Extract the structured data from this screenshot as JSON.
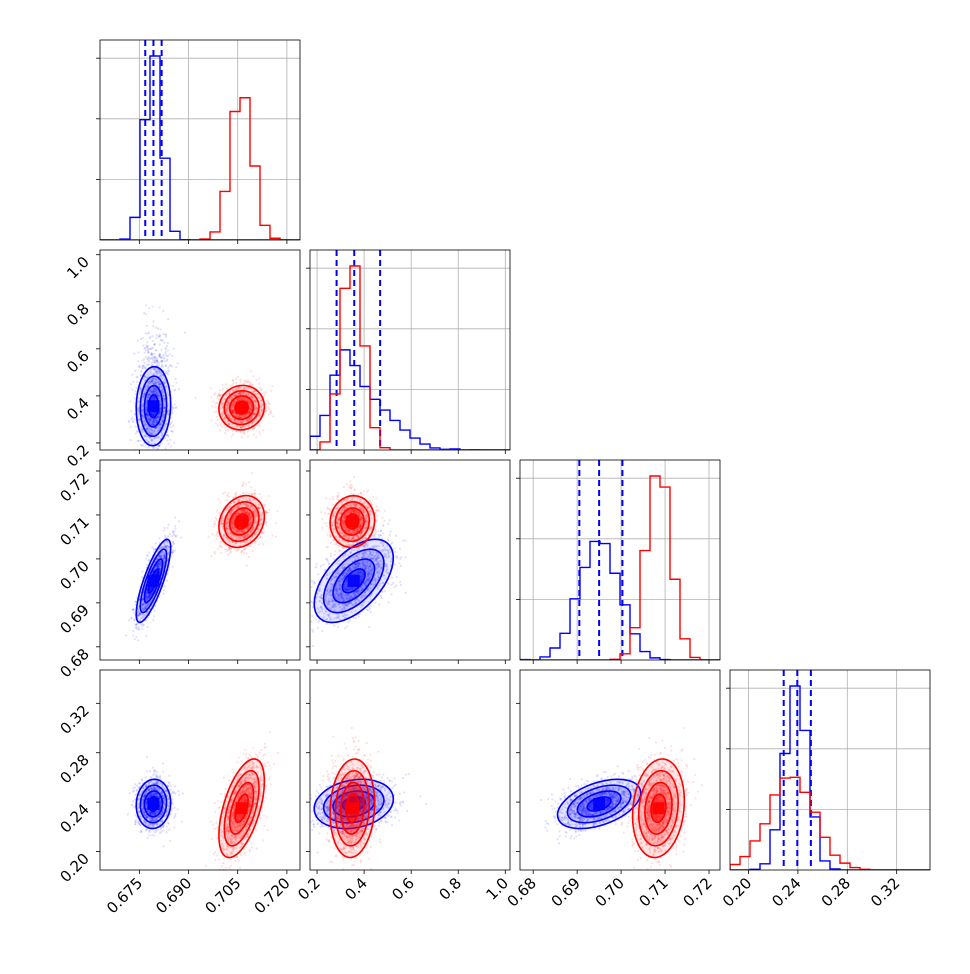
{
  "chart_data": {
    "type": "scatter",
    "title": "",
    "kind": "corner-plot",
    "grid": true,
    "colors": {
      "blue": "#0000ff",
      "red": "#ff0000",
      "axis": "#000000",
      "grid": "#b0b0b0"
    },
    "parameters": [
      {
        "range": [
          0.663,
          0.724
        ],
        "ticks": [
          0.675,
          0.69,
          0.705,
          0.72
        ],
        "tick_labels": [
          "0.675",
          "0.690",
          "0.705",
          "0.720"
        ]
      },
      {
        "range": [
          0.17,
          1.02
        ],
        "ticks": [
          0.2,
          0.4,
          0.6,
          0.8,
          1.0
        ],
        "tick_labels": [
          "0.2",
          "0.4",
          "0.6",
          "0.8",
          "1.0"
        ]
      },
      {
        "range": [
          0.677,
          0.7225
        ],
        "ticks": [
          0.68,
          0.69,
          0.7,
          0.71,
          0.72
        ],
        "tick_labels": [
          "0.68",
          "0.69",
          "0.70",
          "0.71",
          "0.72"
        ]
      },
      {
        "range": [
          0.185,
          0.347
        ],
        "ticks": [
          0.2,
          0.24,
          0.28,
          0.32
        ],
        "tick_labels": [
          "0.20",
          "0.24",
          "0.28",
          "0.32"
        ]
      }
    ],
    "series": [
      {
        "color": "blue",
        "mean": [
          0.6793,
          0.356,
          0.695,
          0.2385
        ],
        "sigma": [
          0.0025,
          0.08,
          0.0045,
          0.0095
        ],
        "correlation": {
          "0-2": 0.8,
          "1-2": 0.55,
          "1-3": 0.2,
          "2-3": 0.45,
          "0-1": 0.05,
          "0-3": 0.05
        },
        "quantiles": [
          [
            0.6768,
            0.6793,
            0.6818
          ],
          [
            0.283,
            0.358,
            0.468
          ],
          [
            0.6905,
            0.695,
            0.7003
          ],
          [
            0.2285,
            0.2395,
            0.2505
          ]
        ]
      },
      {
        "color": "red",
        "mean": [
          0.7062,
          0.35,
          0.7085,
          0.235
        ],
        "sigma": [
          0.0033,
          0.045,
          0.0028,
          0.019
        ],
        "correlation": {
          "0-2": 0.2,
          "1-2": 0.05,
          "1-3": 0.1,
          "2-3": 0.15,
          "0-1": 0.05,
          "0-3": 0.55
        },
        "quantiles": []
      }
    ]
  }
}
